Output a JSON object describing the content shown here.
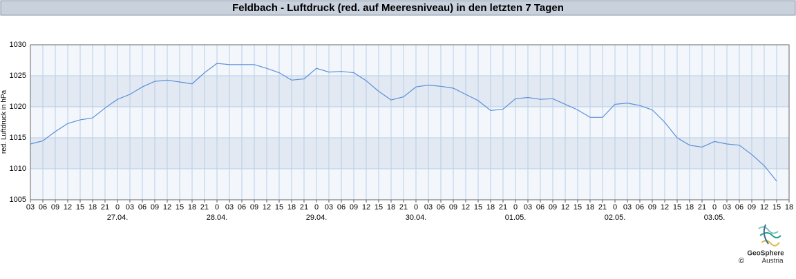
{
  "chart_data": {
    "type": "line",
    "title": "Feldbach - Luftdruck (red. auf Meeresniveau) in den letzten 7 Tagen",
    "y_label": "red. Luftdruck in hPa",
    "color": "#5b8fd9",
    "grid": true,
    "x": [
      0,
      3,
      6,
      9,
      12,
      15,
      18,
      21,
      24,
      27,
      30,
      33,
      36,
      39,
      42,
      45,
      48,
      51,
      54,
      57,
      60,
      63,
      66,
      69,
      72,
      75,
      78,
      81,
      84,
      87,
      90,
      93,
      96,
      99,
      102,
      105,
      108,
      111,
      114,
      117,
      120,
      123,
      126,
      129,
      132,
      135,
      138,
      141,
      144,
      147,
      150,
      153,
      156,
      159,
      162,
      165,
      168,
      171,
      174,
      177,
      180
    ],
    "values": [
      1014.0,
      1014.5,
      1016.0,
      1017.3,
      1017.9,
      1018.2,
      1019.8,
      1021.2,
      1022.0,
      1023.2,
      1024.1,
      1024.3,
      1024.0,
      1023.7,
      1025.5,
      1027.0,
      1026.8,
      1026.8,
      1026.8,
      1026.2,
      1025.5,
      1024.3,
      1024.5,
      1026.2,
      1025.6,
      1025.7,
      1025.5,
      1024.2,
      1022.5,
      1021.1,
      1021.6,
      1023.2,
      1023.5,
      1023.3,
      1023.0,
      1022.0,
      1021.0,
      1019.4,
      1019.6,
      1021.3,
      1021.5,
      1021.2,
      1021.3,
      1020.4,
      1019.5,
      1018.3,
      1018.3,
      1020.4,
      1020.6,
      1020.2,
      1019.5,
      1017.5,
      1015.0,
      1013.8,
      1013.5,
      1014.4,
      1014.0,
      1013.8,
      1012.3,
      1010.5,
      1008.0
    ],
    "xlim": [
      0,
      183
    ],
    "xticks": [
      {
        "value": 0,
        "label": "03"
      },
      {
        "value": 3,
        "label": "06"
      },
      {
        "value": 6,
        "label": "09"
      },
      {
        "value": 9,
        "label": "12"
      },
      {
        "value": 12,
        "label": "15"
      },
      {
        "value": 15,
        "label": "18"
      },
      {
        "value": 18,
        "label": "21"
      },
      {
        "value": 21,
        "label": "0"
      },
      {
        "value": 24,
        "label": "03"
      },
      {
        "value": 27,
        "label": "06"
      },
      {
        "value": 30,
        "label": "09"
      },
      {
        "value": 33,
        "label": "12"
      },
      {
        "value": 36,
        "label": "15"
      },
      {
        "value": 39,
        "label": "18"
      },
      {
        "value": 42,
        "label": "21"
      },
      {
        "value": 45,
        "label": "0"
      },
      {
        "value": 48,
        "label": "03"
      },
      {
        "value": 51,
        "label": "06"
      },
      {
        "value": 54,
        "label": "09"
      },
      {
        "value": 57,
        "label": "12"
      },
      {
        "value": 60,
        "label": "15"
      },
      {
        "value": 63,
        "label": "18"
      },
      {
        "value": 66,
        "label": "21"
      },
      {
        "value": 69,
        "label": "0"
      },
      {
        "value": 72,
        "label": "03"
      },
      {
        "value": 75,
        "label": "06"
      },
      {
        "value": 78,
        "label": "09"
      },
      {
        "value": 81,
        "label": "12"
      },
      {
        "value": 84,
        "label": "15"
      },
      {
        "value": 87,
        "label": "18"
      },
      {
        "value": 90,
        "label": "21"
      },
      {
        "value": 93,
        "label": "0"
      },
      {
        "value": 96,
        "label": "03"
      },
      {
        "value": 99,
        "label": "06"
      },
      {
        "value": 102,
        "label": "09"
      },
      {
        "value": 105,
        "label": "12"
      },
      {
        "value": 108,
        "label": "15"
      },
      {
        "value": 111,
        "label": "18"
      },
      {
        "value": 114,
        "label": "21"
      },
      {
        "value": 117,
        "label": "0"
      },
      {
        "value": 120,
        "label": "03"
      },
      {
        "value": 123,
        "label": "06"
      },
      {
        "value": 126,
        "label": "09"
      },
      {
        "value": 129,
        "label": "12"
      },
      {
        "value": 132,
        "label": "15"
      },
      {
        "value": 135,
        "label": "18"
      },
      {
        "value": 138,
        "label": "21"
      },
      {
        "value": 141,
        "label": "0"
      },
      {
        "value": 144,
        "label": "03"
      },
      {
        "value": 147,
        "label": "06"
      },
      {
        "value": 150,
        "label": "09"
      },
      {
        "value": 153,
        "label": "12"
      },
      {
        "value": 156,
        "label": "15"
      },
      {
        "value": 159,
        "label": "18"
      },
      {
        "value": 162,
        "label": "21"
      },
      {
        "value": 165,
        "label": "0"
      },
      {
        "value": 168,
        "label": "03"
      },
      {
        "value": 171,
        "label": "06"
      },
      {
        "value": 174,
        "label": "09"
      },
      {
        "value": 177,
        "label": "12"
      },
      {
        "value": 180,
        "label": "15"
      },
      {
        "value": 183,
        "label": "18"
      }
    ],
    "date_labels": [
      {
        "value": 21,
        "label": "27.04."
      },
      {
        "value": 45,
        "label": "28.04."
      },
      {
        "value": 69,
        "label": "29.04."
      },
      {
        "value": 93,
        "label": "30.04."
      },
      {
        "value": 117,
        "label": "01.05."
      },
      {
        "value": 141,
        "label": "02.05."
      },
      {
        "value": 165,
        "label": "03.05."
      }
    ],
    "ylim": [
      1005,
      1030
    ],
    "yticks": [
      1005,
      1010,
      1015,
      1020,
      1025,
      1030
    ]
  },
  "footer": {
    "logo_name": "GeoSphere",
    "logo_sub": "Austria",
    "copyright": "©"
  }
}
